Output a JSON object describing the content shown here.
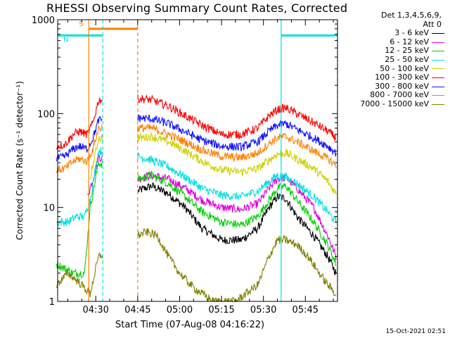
{
  "chart_data": {
    "type": "line",
    "title": "RHESSI Observing Summary Count Rates, Corrected",
    "xlabel": "Start Time (07-Aug-08 04:16:22)",
    "ylabel": "Corrected Count Rate (s⁻¹ detector⁻¹)",
    "yscale": "log",
    "ylim": [
      1,
      1000
    ],
    "xlim": [
      "04:16:22",
      "05:56:30"
    ],
    "xticks": [
      "04:30",
      "04:45",
      "05:00",
      "05:15",
      "05:30",
      "05:45"
    ],
    "yticks": [
      "1",
      "10",
      "100",
      "1000"
    ],
    "legend_title": [
      "Det 1,3,4,5,6,9,",
      "Att 0"
    ],
    "legend_position": "right-outside",
    "footer": "15-Oct-2021 02:51",
    "series": [
      {
        "name": "3 - 6 keV",
        "color": "#000000",
        "t": [
          "04:16",
          "04:22",
          "04:26",
          "04:28",
          "04:31",
          "04:45",
          "04:50",
          "04:56",
          "05:02",
          "05:08",
          "05:15",
          "05:22",
          "05:28",
          "05:32",
          "05:35",
          "05:38",
          "05:42",
          "05:48",
          "05:53",
          "05:56"
        ],
        "v": [
          null,
          null,
          null,
          null,
          null,
          15,
          17,
          14,
          10,
          6,
          4.5,
          4.5,
          6,
          10,
          13,
          12.5,
          8,
          5,
          3,
          2
        ]
      },
      {
        "name": "6 - 12 keV",
        "color": "#e000e0",
        "t": [
          "04:27",
          "04:29",
          "04:31",
          "04:45",
          "04:50",
          "04:56",
          "05:02",
          "05:08",
          "05:15",
          "05:22",
          "05:28",
          "05:32",
          "05:35",
          "05:38",
          "05:42",
          "05:48",
          "05:53",
          "05:56"
        ],
        "v": [
          13,
          20,
          35,
          20,
          22,
          20,
          16,
          12,
          10,
          9.5,
          11,
          16,
          20,
          21,
          16,
          10,
          5,
          3
        ]
      },
      {
        "name": "12 - 25 keV",
        "color": "#00d000",
        "t": [
          "04:16",
          "04:22",
          "04:26",
          "04:28",
          "04:31",
          "04:45",
          "04:50",
          "04:56",
          "05:02",
          "05:08",
          "05:15",
          "05:22",
          "05:28",
          "05:32",
          "05:35",
          "05:38",
          "05:42",
          "05:48",
          "05:53",
          "05:56"
        ],
        "v": [
          2.5,
          2,
          2,
          10,
          30,
          20,
          22,
          18,
          13,
          9,
          7,
          6.5,
          8,
          12,
          16,
          17,
          12,
          7,
          4,
          2.5
        ]
      },
      {
        "name": "25 - 50 keV",
        "color": "#00e0e0",
        "t": [
          "04:16",
          "04:20",
          "04:23",
          "04:26",
          "04:28",
          "04:31",
          "04:45",
          "04:50",
          "04:56",
          "05:02",
          "05:08",
          "05:15",
          "05:22",
          "05:28",
          "05:32",
          "05:35",
          "05:38",
          "05:42",
          "05:48",
          "05:53",
          "05:56"
        ],
        "v": [
          7,
          7,
          8,
          8,
          12,
          40,
          35,
          32,
          27,
          21,
          16,
          13.5,
          13,
          15,
          19,
          22,
          21,
          18,
          13,
          9,
          7
        ]
      },
      {
        "name": "50 - 100 keV",
        "color": "#d0d000",
        "t": [
          "04:28",
          "04:31",
          "04:45",
          "04:50",
          "04:56",
          "05:02",
          "05:08",
          "05:15",
          "05:22",
          "05:28",
          "05:32",
          "05:35",
          "05:38",
          "05:42",
          "05:48",
          "05:53",
          "05:56"
        ],
        "v": [
          20,
          55,
          55,
          57,
          50,
          40,
          31,
          25,
          24,
          26,
          32,
          37,
          38,
          33,
          26,
          19,
          14
        ]
      },
      {
        "name": "100 - 300 keV",
        "color": "#ff0000",
        "t": [
          "04:16",
          "04:19",
          "04:22",
          "04:24",
          "04:27",
          "04:29",
          "04:31",
          "04:45",
          "04:50",
          "04:56",
          "05:02",
          "05:08",
          "05:15",
          "05:22",
          "05:28",
          "05:32",
          "05:35",
          "05:38",
          "05:42",
          "05:48",
          "05:53",
          "05:56"
        ],
        "v": [
          45,
          47,
          60,
          65,
          60,
          80,
          140,
          145,
          140,
          120,
          95,
          75,
          60,
          60,
          70,
          95,
          110,
          115,
          100,
          80,
          65,
          55
        ]
      },
      {
        "name": "300 - 800 keV",
        "color": "#1010ff",
        "t": [
          "04:16",
          "04:19",
          "04:22",
          "04:24",
          "04:27",
          "04:29",
          "04:31",
          "04:45",
          "04:50",
          "04:56",
          "05:02",
          "05:08",
          "05:15",
          "05:22",
          "05:28",
          "05:32",
          "05:35",
          "05:38",
          "05:42",
          "05:48",
          "05:53",
          "05:56"
        ],
        "v": [
          33,
          35,
          42,
          45,
          42,
          55,
          85,
          90,
          88,
          78,
          64,
          52,
          45,
          44,
          50,
          65,
          75,
          78,
          68,
          55,
          45,
          38
        ]
      },
      {
        "name": "800 - 7000 keV",
        "color": "#ff8000",
        "t": [
          "04:16",
          "04:19",
          "04:22",
          "04:24",
          "04:27",
          "04:29",
          "04:31",
          "04:45",
          "04:50",
          "04:56",
          "05:02",
          "05:08",
          "05:15",
          "05:22",
          "05:28",
          "05:32",
          "05:35",
          "05:38",
          "05:42",
          "05:48",
          "05:53",
          "05:56"
        ],
        "v": [
          25,
          26,
          31,
          33,
          31,
          42,
          70,
          70,
          70,
          60,
          50,
          41,
          35,
          34,
          38,
          48,
          55,
          57,
          50,
          40,
          33,
          28
        ]
      },
      {
        "name": "7000 - 15000 keV",
        "color": "#808000",
        "t": [
          "04:16",
          "04:20",
          "04:24",
          "04:28",
          "04:31",
          "04:45",
          "04:48",
          "04:52",
          "04:56",
          "05:00",
          "05:05",
          "05:12",
          "05:20",
          "05:28",
          "05:32",
          "05:35",
          "05:38",
          "05:42",
          "05:46",
          "05:50",
          "05:53",
          "05:56"
        ],
        "v": [
          1.5,
          2,
          1.6,
          1.2,
          3,
          5,
          5.5,
          5,
          3,
          2,
          1.4,
          1,
          1,
          1.5,
          3,
          4.5,
          4.5,
          4,
          3,
          2,
          1.5,
          1.2
        ]
      }
    ],
    "bars": [
      {
        "label": "S",
        "color": "#ff8000",
        "start": "04:27:30",
        "end": "04:45:00",
        "y": 800
      },
      {
        "label": "N",
        "color": "#00e0e0",
        "start": "04:16:22",
        "end": "04:32:30",
        "y": 680
      },
      {
        "label": "",
        "color": "#00e0e0",
        "start": "05:36:20",
        "end": "05:56:30",
        "y": 680
      }
    ],
    "markers": [
      {
        "time": "04:27:30",
        "color": "#ff8000",
        "style": "solid"
      },
      {
        "time": "04:32:30",
        "color": "#00e0e0",
        "style": "dashed"
      },
      {
        "time": "04:45:00",
        "color": "#ff8000",
        "style": "dashed"
      },
      {
        "time": "05:36:20",
        "color": "#00e0e0",
        "style": "solid"
      },
      {
        "time": "05:56:30",
        "color": "#00e0e0",
        "style": "dashed"
      }
    ],
    "gaps": [
      [
        "04:32:30",
        "04:45:00"
      ]
    ]
  }
}
